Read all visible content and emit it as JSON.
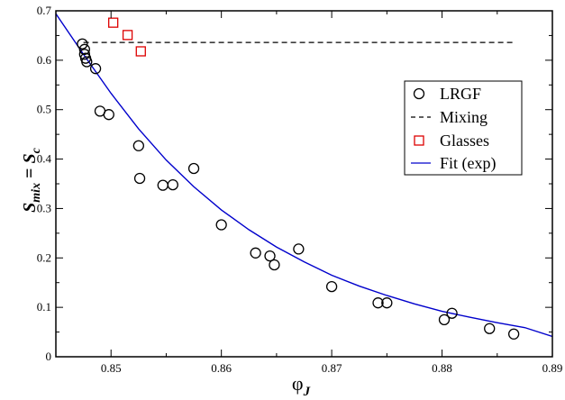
{
  "chart_data": {
    "type": "scatter",
    "xlim": [
      0.845,
      0.89
    ],
    "ylim": [
      0,
      0.7
    ],
    "x_ticks": [
      "0.85",
      "0.86",
      "0.87",
      "0.88",
      "0.89"
    ],
    "y_ticks": [
      "0",
      "0.1",
      "0.2",
      "0.3",
      "0.4",
      "0.5",
      "0.6",
      "0.7"
    ],
    "xlabel": {
      "main": "φ",
      "sub": "J"
    },
    "ylabel": {
      "s1": "S",
      "sub1": "mix",
      "eq": " = ",
      "s2": "S",
      "sub2": "c"
    },
    "legend_position": "upper-right",
    "series": [
      {
        "name": "LRGF",
        "kind": "scatter",
        "marker": "open-circle",
        "color": "#000000",
        "points": [
          [
            0.8474,
            0.633
          ],
          [
            0.8476,
            0.622
          ],
          [
            0.8476,
            0.612
          ],
          [
            0.8477,
            0.604
          ],
          [
            0.8478,
            0.597
          ],
          [
            0.8486,
            0.583
          ],
          [
            0.849,
            0.497
          ],
          [
            0.8498,
            0.49
          ],
          [
            0.8525,
            0.427
          ],
          [
            0.8526,
            0.361
          ],
          [
            0.8547,
            0.347
          ],
          [
            0.8556,
            0.348
          ],
          [
            0.8575,
            0.381
          ],
          [
            0.86,
            0.267
          ],
          [
            0.8631,
            0.21
          ],
          [
            0.8644,
            0.204
          ],
          [
            0.8648,
            0.186
          ],
          [
            0.867,
            0.218
          ],
          [
            0.87,
            0.142
          ],
          [
            0.8742,
            0.109
          ],
          [
            0.875,
            0.109
          ],
          [
            0.8802,
            0.075
          ],
          [
            0.8809,
            0.088
          ],
          [
            0.8843,
            0.057
          ],
          [
            0.8865,
            0.046
          ]
        ]
      },
      {
        "name": "Mixing",
        "kind": "dashed-line",
        "color": "#000000",
        "x_range": [
          0.8475,
          0.8865
        ],
        "y": 0.636
      },
      {
        "name": "Glasses",
        "kind": "scatter",
        "marker": "open-square",
        "color": "#dd0000",
        "points": [
          [
            0.8502,
            0.676
          ],
          [
            0.8515,
            0.651
          ],
          [
            0.8527,
            0.618
          ]
        ]
      },
      {
        "name": "Fit (exp)",
        "kind": "curve",
        "color": "#0000cc",
        "x_range": [
          0.845,
          0.89
        ],
        "points": [
          [
            0.845,
            0.694
          ],
          [
            0.8475,
            0.612
          ],
          [
            0.85,
            0.533
          ],
          [
            0.8525,
            0.461
          ],
          [
            0.855,
            0.398
          ],
          [
            0.8575,
            0.344
          ],
          [
            0.86,
            0.297
          ],
          [
            0.8625,
            0.257
          ],
          [
            0.865,
            0.222
          ],
          [
            0.8675,
            0.192
          ],
          [
            0.87,
            0.165
          ],
          [
            0.8725,
            0.143
          ],
          [
            0.875,
            0.124
          ],
          [
            0.8775,
            0.107
          ],
          [
            0.88,
            0.092
          ],
          [
            0.8825,
            0.08
          ],
          [
            0.885,
            0.069
          ],
          [
            0.8875,
            0.059
          ],
          [
            0.89,
            0.041
          ]
        ]
      }
    ]
  }
}
